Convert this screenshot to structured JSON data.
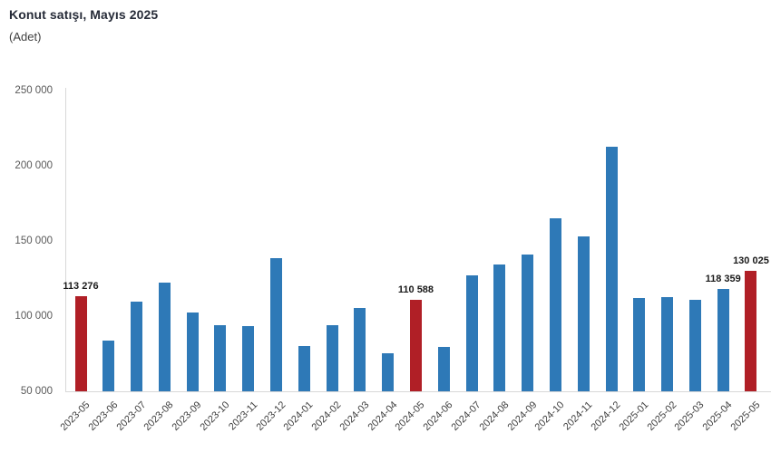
{
  "chart_data": {
    "type": "bar",
    "title": "Konut satışı, Mayıs 2025",
    "subtitle": "(Adet)",
    "categories": [
      "2023-05",
      "2023-06",
      "2023-07",
      "2023-08",
      "2023-09",
      "2023-10",
      "2023-11",
      "2023-12",
      "2024-01",
      "2024-02",
      "2024-03",
      "2024-04",
      "2024-05",
      "2024-06",
      "2024-07",
      "2024-08",
      "2024-09",
      "2024-10",
      "2024-11",
      "2024-12",
      "2025-01",
      "2025-02",
      "2025-03",
      "2025-04",
      "2025-05"
    ],
    "values": [
      113276,
      83636,
      109548,
      122091,
      102656,
      93761,
      93514,
      138577,
      80308,
      93902,
      105476,
      75569,
      110588,
      79313,
      127088,
      134155,
      140919,
      165138,
      153014,
      212637,
      112173,
      112818,
      110795,
      118359,
      130025
    ],
    "highlight_indices": [
      0,
      12,
      24
    ],
    "value_labels": [
      {
        "index": 0,
        "text": "113 276"
      },
      {
        "index": 12,
        "text": "110 588"
      },
      {
        "index": 23,
        "text": "118 359"
      },
      {
        "index": 24,
        "text": "130 025"
      }
    ],
    "bar_color": "#2e79b7",
    "highlight_color": "#b01f26",
    "ylim": [
      50000,
      250000
    ],
    "ytick_step": 50000,
    "ytick_labels": [
      "50 000",
      "100 000",
      "150 000",
      "200 000",
      "250 000"
    ],
    "xlabel": "",
    "ylabel": "",
    "grid": false,
    "legend_position": "none"
  }
}
